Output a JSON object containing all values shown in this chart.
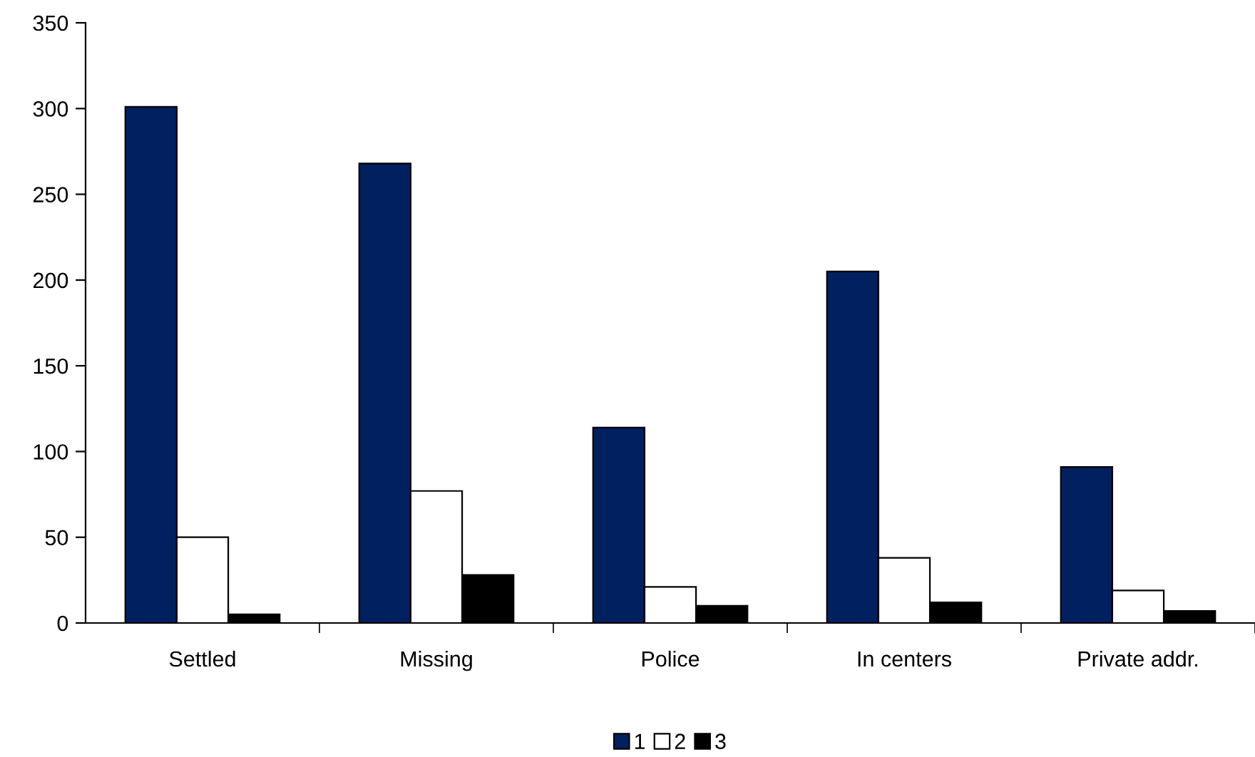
{
  "chart_data": {
    "type": "bar",
    "categories": [
      "Settled",
      "Missing",
      "Police",
      "In centers",
      "Private addr."
    ],
    "series": [
      {
        "name": "1",
        "color": "#002060",
        "values": [
          301,
          268,
          114,
          205,
          91
        ]
      },
      {
        "name": "2",
        "color": "#ffffff",
        "values": [
          50,
          77,
          21,
          38,
          19
        ]
      },
      {
        "name": "3",
        "color": "#000000",
        "values": [
          5,
          28,
          10,
          12,
          7
        ]
      }
    ],
    "ylim": [
      0,
      350
    ],
    "yticks": [
      0,
      50,
      100,
      150,
      200,
      250,
      300,
      350
    ],
    "grid": false,
    "legend": "bottom"
  }
}
